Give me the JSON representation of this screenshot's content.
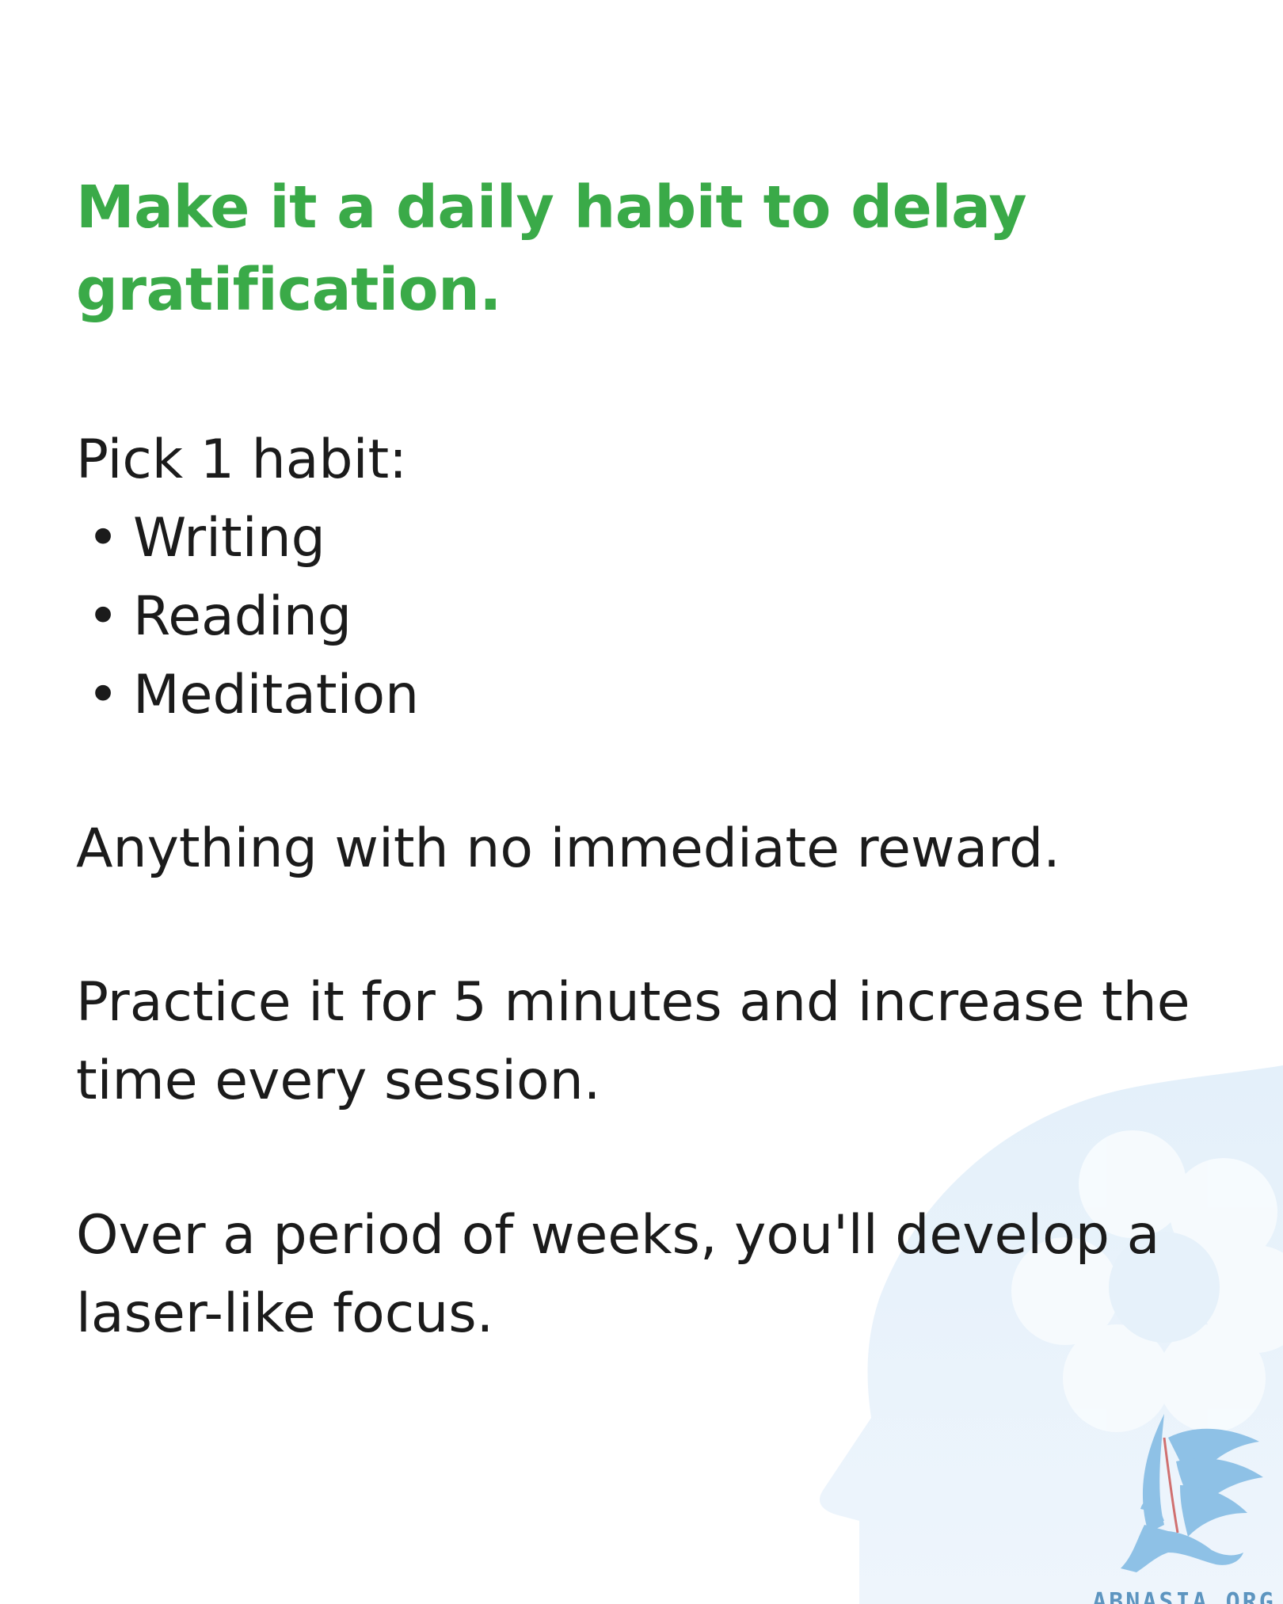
{
  "heading": "Make it a daily habit to delay gratification.",
  "intro": "Pick 1 habit:",
  "habits": [
    {
      "bullet": "•",
      "label": "Writing"
    },
    {
      "bullet": "•",
      "label": "Reading"
    },
    {
      "bullet": "•",
      "label": "Meditation"
    }
  ],
  "paragraphs": {
    "reward": "Anything with no immediate reward.",
    "practice": "Practice it for 5 minutes and increase the time every session.",
    "weeks": "Over a period of weeks, you'll develop a laser-like focus."
  },
  "watermark": {
    "text": "ABNASIA.ORG",
    "icon": "griffin-logo-icon"
  },
  "background": {
    "icon": "head-with-flower-icon"
  },
  "colors": {
    "heading": "#3aaa48",
    "text": "#1b1b1b",
    "background": "#ffffff",
    "head_silhouette": "#ebf4fb",
    "watermark": "#5d95c0"
  }
}
